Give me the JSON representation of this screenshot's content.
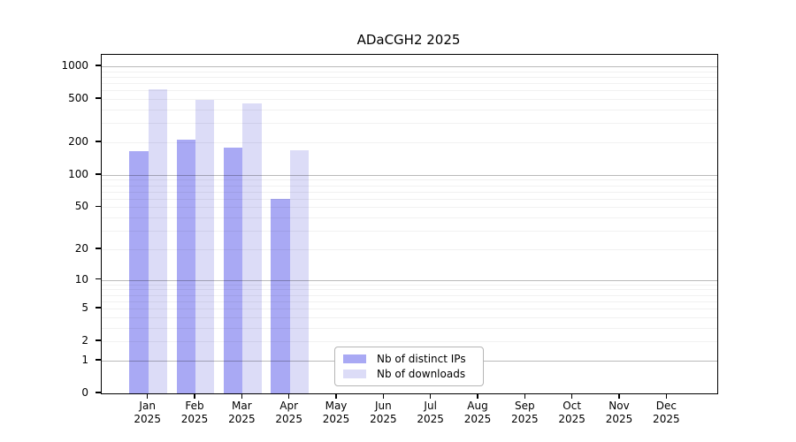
{
  "title": "ADaCGH2 2025",
  "colors": {
    "distinct_ips": "#a9a9f4",
    "downloads": "#dcdcf7",
    "axis": "#000000",
    "legend_border": "#b5b5b5"
  },
  "legend": {
    "items": [
      {
        "label": "Nb of distinct IPs",
        "series": "distinct_ips"
      },
      {
        "label": "Nb of downloads",
        "series": "downloads"
      }
    ]
  },
  "chart_data": {
    "type": "bar",
    "title": "ADaCGH2 2025",
    "categories": [
      "Jan 2025",
      "Feb 2025",
      "Mar 2025",
      "Apr 2025",
      "May 2025",
      "Jun 2025",
      "Jul 2025",
      "Aug 2025",
      "Sep 2025",
      "Oct 2025",
      "Nov 2025",
      "Dec 2025"
    ],
    "series": [
      {
        "name": "Nb of distinct IPs",
        "color": "#a9a9f4",
        "values": [
          165,
          210,
          180,
          60,
          null,
          null,
          null,
          null,
          null,
          null,
          null,
          null
        ]
      },
      {
        "name": "Nb of downloads",
        "color": "#dcdcf7",
        "values": [
          610,
          490,
          455,
          170,
          null,
          null,
          null,
          null,
          null,
          null,
          null,
          null
        ]
      }
    ],
    "xlabel": "",
    "ylabel": "",
    "yscale": "log1p",
    "yticks": [
      0,
      1,
      2,
      5,
      10,
      20,
      50,
      100,
      200,
      500,
      1000
    ],
    "ylim": [
      0,
      1276
    ],
    "grid": true,
    "grid_minor": true,
    "legend_position": "lower center"
  }
}
